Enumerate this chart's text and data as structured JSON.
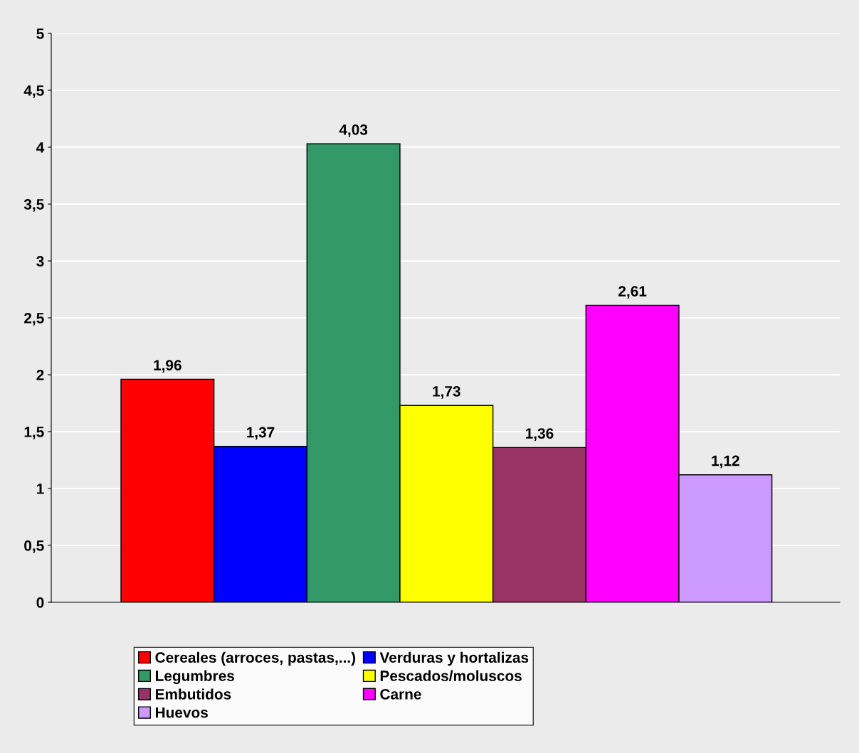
{
  "chart_data": {
    "type": "bar",
    "categories": [
      null
    ],
    "series": [
      {
        "name": "Cereales (arroces, pastas,...)",
        "color": "#ff0000",
        "values": [
          1.96
        ],
        "value_labels": [
          "1,96"
        ]
      },
      {
        "name": "Verduras y hortalizas",
        "color": "#0000ff",
        "values": [
          1.37
        ],
        "value_labels": [
          "1,37"
        ]
      },
      {
        "name": "Legumbres",
        "color": "#339966",
        "values": [
          4.03
        ],
        "value_labels": [
          "4,03"
        ]
      },
      {
        "name": "Pescados/moluscos",
        "color": "#ffff00",
        "values": [
          1.73
        ],
        "value_labels": [
          "1,73"
        ]
      },
      {
        "name": "Embutidos",
        "color": "#993366",
        "values": [
          1.36
        ],
        "value_labels": [
          "1,36"
        ]
      },
      {
        "name": "Carne",
        "color": "#ff00ff",
        "values": [
          2.61
        ],
        "value_labels": [
          "2,61"
        ]
      },
      {
        "name": "Huevos",
        "color": "#cc99ff",
        "values": [
          1.12
        ],
        "value_labels": [
          "1,12"
        ]
      }
    ],
    "ylim": [
      0,
      5
    ],
    "yticks": [
      0,
      {
        "value": 0.5,
        "label": "0,5"
      },
      1,
      {
        "value": 1.5,
        "label": "1,5"
      },
      2,
      {
        "value": 2.5,
        "label": "2,5"
      },
      3,
      {
        "value": 3.5,
        "label": "3,5"
      },
      4,
      {
        "value": 4.5,
        "label": "4,5"
      },
      5
    ],
    "grid": "y",
    "legend": "bottom",
    "tick_labels": "y"
  }
}
